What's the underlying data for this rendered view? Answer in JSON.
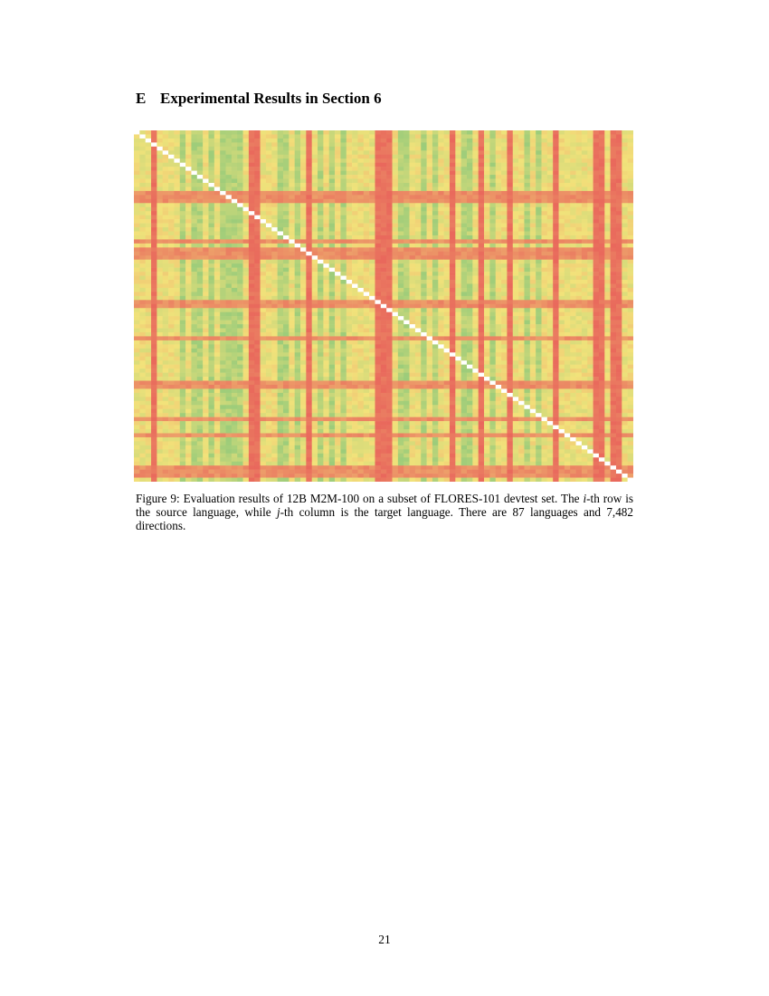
{
  "section": {
    "number": "E",
    "title": "Experimental Results in Section 6"
  },
  "figure": {
    "caption_prefix": "Figure 9: Evaluation results of 12B M2M-100 on a subset of FLORES-101 devtest set. The ",
    "caption_i": "i",
    "caption_mid1": "-th row is the source language, while ",
    "caption_j": "j",
    "caption_suffix": "-th column is the target language. There are 87 languages and 7,482 directions.",
    "heatmap": {
      "type": "heatmap",
      "n_languages": 87,
      "diagonal_color": "#ffffff",
      "low_color": "#e8605a",
      "mid_color": "#f2e27a",
      "high_color": "#6cc07a",
      "weak_target_columns": [
        3,
        20,
        21,
        30,
        42,
        43,
        44,
        55,
        60,
        65,
        73,
        80,
        81,
        83,
        84
      ],
      "weak_source_rows": [
        15,
        16,
        17,
        27,
        29,
        30,
        31,
        42,
        43,
        51,
        62,
        63,
        71,
        75,
        83,
        84,
        85
      ],
      "strong_target_columns": [
        8,
        10,
        11,
        13,
        15,
        16,
        17,
        18,
        25,
        26,
        28,
        32,
        34,
        36,
        46,
        47,
        50,
        52,
        57,
        58,
        62,
        68,
        70
      ]
    }
  },
  "page": {
    "number": "21"
  }
}
